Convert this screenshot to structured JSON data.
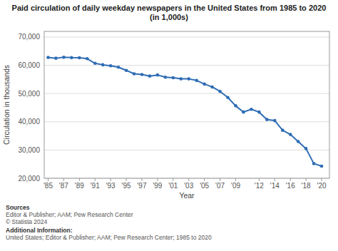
{
  "chart_data": {
    "type": "line",
    "title": "Paid circulation of daily weekday newspapers in the United States from 1985 to 2020\n(in 1,000s)",
    "x_label": "Year",
    "y_label": "Circulation in thousands",
    "x": [
      1985,
      1986,
      1987,
      1988,
      1989,
      1990,
      1991,
      1992,
      1993,
      1994,
      1995,
      1996,
      1997,
      1998,
      1999,
      2000,
      2001,
      2002,
      2003,
      2004,
      2005,
      2006,
      2007,
      2008,
      2009,
      2010,
      2011,
      2012,
      2013,
      2014,
      2015,
      2016,
      2017,
      2018,
      2019,
      2020
    ],
    "values": [
      62766,
      62502,
      62826,
      62695,
      62650,
      62328,
      60687,
      60164,
      59812,
      59305,
      58193,
      56983,
      56728,
      56182,
      56565,
      55773,
      55578,
      55186,
      55185,
      54626,
      53345,
      52329,
      50742,
      48597,
      45653,
      43433,
      44421,
      43433,
      40783,
      40420,
      37000,
      35500,
      33000,
      30500,
      25200,
      24300
    ],
    "color": "#2f6db5",
    "marker": "circle",
    "grid": true,
    "xlim": [
      1984.5,
      2021.0
    ],
    "xticks": [
      {
        "value": 1985,
        "label": "'85"
      },
      {
        "value": 1987,
        "label": "'87"
      },
      {
        "value": 1989,
        "label": "'89"
      },
      {
        "value": 1991,
        "label": "'91"
      },
      {
        "value": 1993,
        "label": "'93"
      },
      {
        "value": 1995,
        "label": "'95"
      },
      {
        "value": 1997,
        "label": "'97"
      },
      {
        "value": 1999,
        "label": "'99"
      },
      {
        "value": 2001,
        "label": "'01"
      },
      {
        "value": 2003,
        "label": "'03"
      },
      {
        "value": 2005,
        "label": "'05"
      },
      {
        "value": 2007,
        "label": "'07"
      },
      {
        "value": 2009,
        "label": "'09"
      },
      {
        "value": 2012,
        "label": "'12"
      },
      {
        "value": 2014,
        "label": "'14"
      },
      {
        "value": 2016,
        "label": "'16"
      },
      {
        "value": 2018,
        "label": "'18"
      },
      {
        "value": 2020,
        "label": "'20"
      }
    ],
    "ylim": [
      20000,
      72000
    ],
    "yticks": [
      {
        "value": 20000,
        "label": "20,000"
      },
      {
        "value": 30000,
        "label": "30,000"
      },
      {
        "value": 40000,
        "label": "40,000"
      },
      {
        "value": 50000,
        "label": "50,000"
      },
      {
        "value": 60000,
        "label": "60,000"
      },
      {
        "value": 70000,
        "label": "70,000"
      }
    ],
    "notes": [
      {
        "heading": "Sources",
        "lines": [
          "Editor & Publisher; AAM; Pew Research Center",
          "© Statista 2024"
        ]
      },
      {
        "heading": "Additional Information:",
        "lines": [
          "United States; Editor & Publisher; AAM; Pew Research Center; 1985 to 2020"
        ]
      }
    ]
  }
}
